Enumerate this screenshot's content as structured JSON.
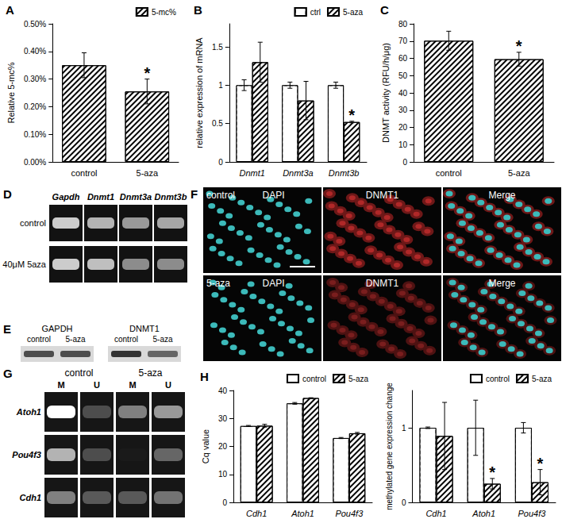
{
  "chart_data": [
    {
      "type": "bar",
      "title": "A",
      "categories": [
        "control",
        "5-aza"
      ],
      "ylabel": "Relative 5-mc%",
      "series": [
        {
          "name": "5-mc%",
          "color": "#000000",
          "values": [
            0.35,
            0.255
          ],
          "errors": [
            0.045,
            0.045
          ]
        }
      ],
      "ylim": [
        0,
        0.5
      ],
      "yticks": [
        {
          "value": 0,
          "label": "0.00%"
        },
        {
          "value": 0.1,
          "label": "0.10%"
        },
        {
          "value": 0.2,
          "label": "0.20%"
        },
        {
          "value": 0.3,
          "label": "0.30%"
        },
        {
          "value": 0.4,
          "label": "0.40%"
        },
        {
          "value": 0.5,
          "label": "0.50%"
        }
      ],
      "annotations": [
        {
          "text": "*",
          "category": "5-aza",
          "series": "5-mc%"
        }
      ],
      "legend": "upper right",
      "grid": false
    },
    {
      "type": "bar",
      "title": "B",
      "categories": [
        "Dnmt1",
        "Dnmt3a",
        "Dnmt3b"
      ],
      "ylabel": "relative expression of mRNA",
      "series": [
        {
          "name": "ctrl",
          "color": "#ffffff",
          "values": [
            1,
            1,
            1
          ],
          "errors": [
            0.07,
            0.04,
            0.04
          ]
        },
        {
          "name": "5-aza",
          "color": "#000000",
          "values": [
            1.3,
            0.8,
            0.52
          ],
          "errors": [
            0.26,
            0.25,
            0.01
          ]
        }
      ],
      "ylim": [
        0,
        1.8
      ],
      "yticks": [
        0,
        0.5,
        1,
        1.5
      ],
      "annotations": [
        {
          "text": "*",
          "category": "Dnmt3b",
          "series": "5-aza"
        }
      ],
      "legend": "upper right",
      "grid": false
    },
    {
      "type": "bar",
      "title": "C",
      "categories": [
        "control",
        "5-aza"
      ],
      "ylabel": "DNMT activity (RFU/h/μg)",
      "series": [
        {
          "color": "#000000",
          "values": [
            70.2,
            59.5
          ],
          "errors": [
            5.5,
            4
          ]
        }
      ],
      "ylim": [
        0,
        80
      ],
      "yticks": [
        0,
        10,
        20,
        30,
        40,
        50,
        60,
        70,
        80
      ],
      "annotations": [
        {
          "text": "*",
          "category": "5-aza"
        }
      ],
      "grid": false
    },
    {
      "type": "bar",
      "title": "H",
      "categories": [
        "Cdh1",
        "Atoh1",
        "Pou4f3"
      ],
      "ylabel": "Cq value",
      "series": [
        {
          "name": "control",
          "color": "#ffffff",
          "values": [
            27.3,
            35.4,
            23.0
          ],
          "errors": [
            0.2,
            0.3,
            0.2
          ]
        },
        {
          "name": "5-aza",
          "color": "#000000",
          "values": [
            27.4,
            37.3,
            24.7
          ],
          "errors": [
            0.5,
            0.1,
            0.3
          ]
        }
      ],
      "ylim": [
        0,
        40
      ],
      "yticks": [
        0,
        10,
        20,
        30,
        40
      ],
      "legend": "upper right",
      "grid": false
    },
    {
      "type": "bar",
      "categories": [
        "Cdh1",
        "Atoh1",
        "Pou4f3"
      ],
      "ylabel": "methylated gene expression change",
      "series": [
        {
          "name": "control",
          "color": "#ffffff",
          "values": [
            1,
            1,
            1
          ],
          "errors": [
            0.01,
            0.37,
            0.07
          ]
        },
        {
          "name": "5-aza",
          "color": "#000000",
          "values": [
            0.89,
            0.25,
            0.27
          ],
          "errors": [
            0.45,
            0.07,
            0.17
          ]
        }
      ],
      "ylim": [
        0,
        1.5
      ],
      "yticks": [
        0,
        1
      ],
      "annotations": [
        {
          "text": "*",
          "category": "Atoh1",
          "series": "5-aza"
        },
        {
          "text": "*",
          "category": "Pou4f3",
          "series": "5-aza"
        }
      ],
      "legend": "upper right",
      "grid": false
    }
  ],
  "image_panels": {
    "D": {
      "title": "D",
      "columns": [
        "Gapdh",
        "Dnmt1",
        "Dnmt3a",
        "Dnmt3b"
      ],
      "rows": [
        "control",
        "40μM 5aza"
      ],
      "bands": [
        [
          0.8,
          0.7,
          0.6,
          0.65
        ],
        [
          0.8,
          0.75,
          0.55,
          0.55
        ]
      ]
    },
    "E": {
      "title": "E",
      "groups": [
        {
          "name": "GAPDH",
          "lanes": [
            "control",
            "5-aza"
          ],
          "bands": [
            0.7,
            0.7
          ]
        },
        {
          "name": "DNMT1",
          "lanes": [
            "control",
            "5-aza"
          ],
          "bands": [
            0.8,
            0.6
          ]
        }
      ]
    },
    "F": {
      "title": "F",
      "rows": [
        "control",
        "5-aza"
      ],
      "columns": [
        "DAPI",
        "DNMT1",
        "Merge"
      ]
    },
    "G": {
      "title": "G",
      "groups": [
        {
          "name": "control",
          "lanes": [
            "M",
            "U"
          ]
        },
        {
          "name": "5-aza",
          "lanes": [
            "M",
            "U"
          ]
        }
      ],
      "rows": [
        "Atoh1",
        "Pou4f3",
        "Cdh1"
      ],
      "bands": [
        [
          1.0,
          0.3,
          0.5,
          0.6
        ],
        [
          0.7,
          0.3,
          0.1,
          0.4
        ],
        [
          0.5,
          0.35,
          0.35,
          0.45
        ]
      ]
    }
  }
}
